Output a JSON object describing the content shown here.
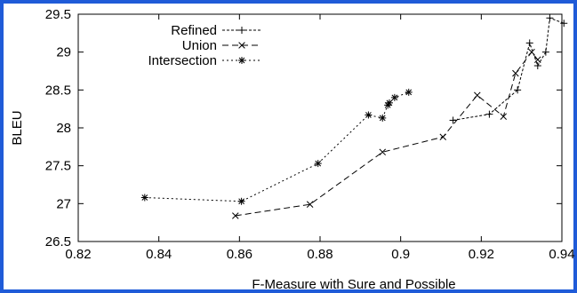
{
  "chart_data": {
    "type": "line",
    "title": "",
    "xlabel": "F-Measure with Sure and Possible",
    "ylabel": "BLEU",
    "xlim": [
      0.82,
      0.94
    ],
    "ylim": [
      26.5,
      29.5
    ],
    "xticks": [
      0.82,
      0.84,
      0.86,
      0.88,
      0.9,
      0.92,
      0.94
    ],
    "yticks": [
      26.5,
      27,
      27.5,
      28,
      28.5,
      29,
      29.5
    ],
    "xtick_labels": [
      "0.82",
      "0.84",
      "0.86",
      "0.88",
      "0.9",
      "0.92",
      "0.94"
    ],
    "ytick_labels": [
      "26.5",
      "27",
      "27.5",
      "28",
      "28.5",
      "29",
      "29.5"
    ],
    "grid": false,
    "legend_position": "top-left",
    "series": [
      {
        "name": "Refined",
        "marker": "plus",
        "dash": "3,2",
        "x": [
          0.913,
          0.922,
          0.929,
          0.932,
          0.934,
          0.936,
          0.937,
          0.9405
        ],
        "y": [
          28.1,
          28.18,
          28.5,
          29.12,
          28.82,
          29.0,
          29.45,
          29.38
        ]
      },
      {
        "name": "Union",
        "marker": "cross",
        "dash": "7,4",
        "x": [
          0.859,
          0.8775,
          0.8955,
          0.9105,
          0.919,
          0.9255,
          0.9285,
          0.9325,
          0.934
        ],
        "y": [
          26.84,
          26.99,
          27.68,
          27.88,
          28.43,
          28.15,
          28.72,
          29.0,
          28.9
        ]
      },
      {
        "name": "Intersection",
        "marker": "star",
        "dash": "2,3",
        "x": [
          0.8365,
          0.8605,
          0.8795,
          0.892,
          0.8955,
          0.8968,
          0.8972,
          0.8985,
          0.902
        ],
        "y": [
          27.08,
          27.03,
          27.53,
          28.17,
          28.13,
          28.3,
          28.33,
          28.4,
          28.47
        ]
      }
    ]
  }
}
